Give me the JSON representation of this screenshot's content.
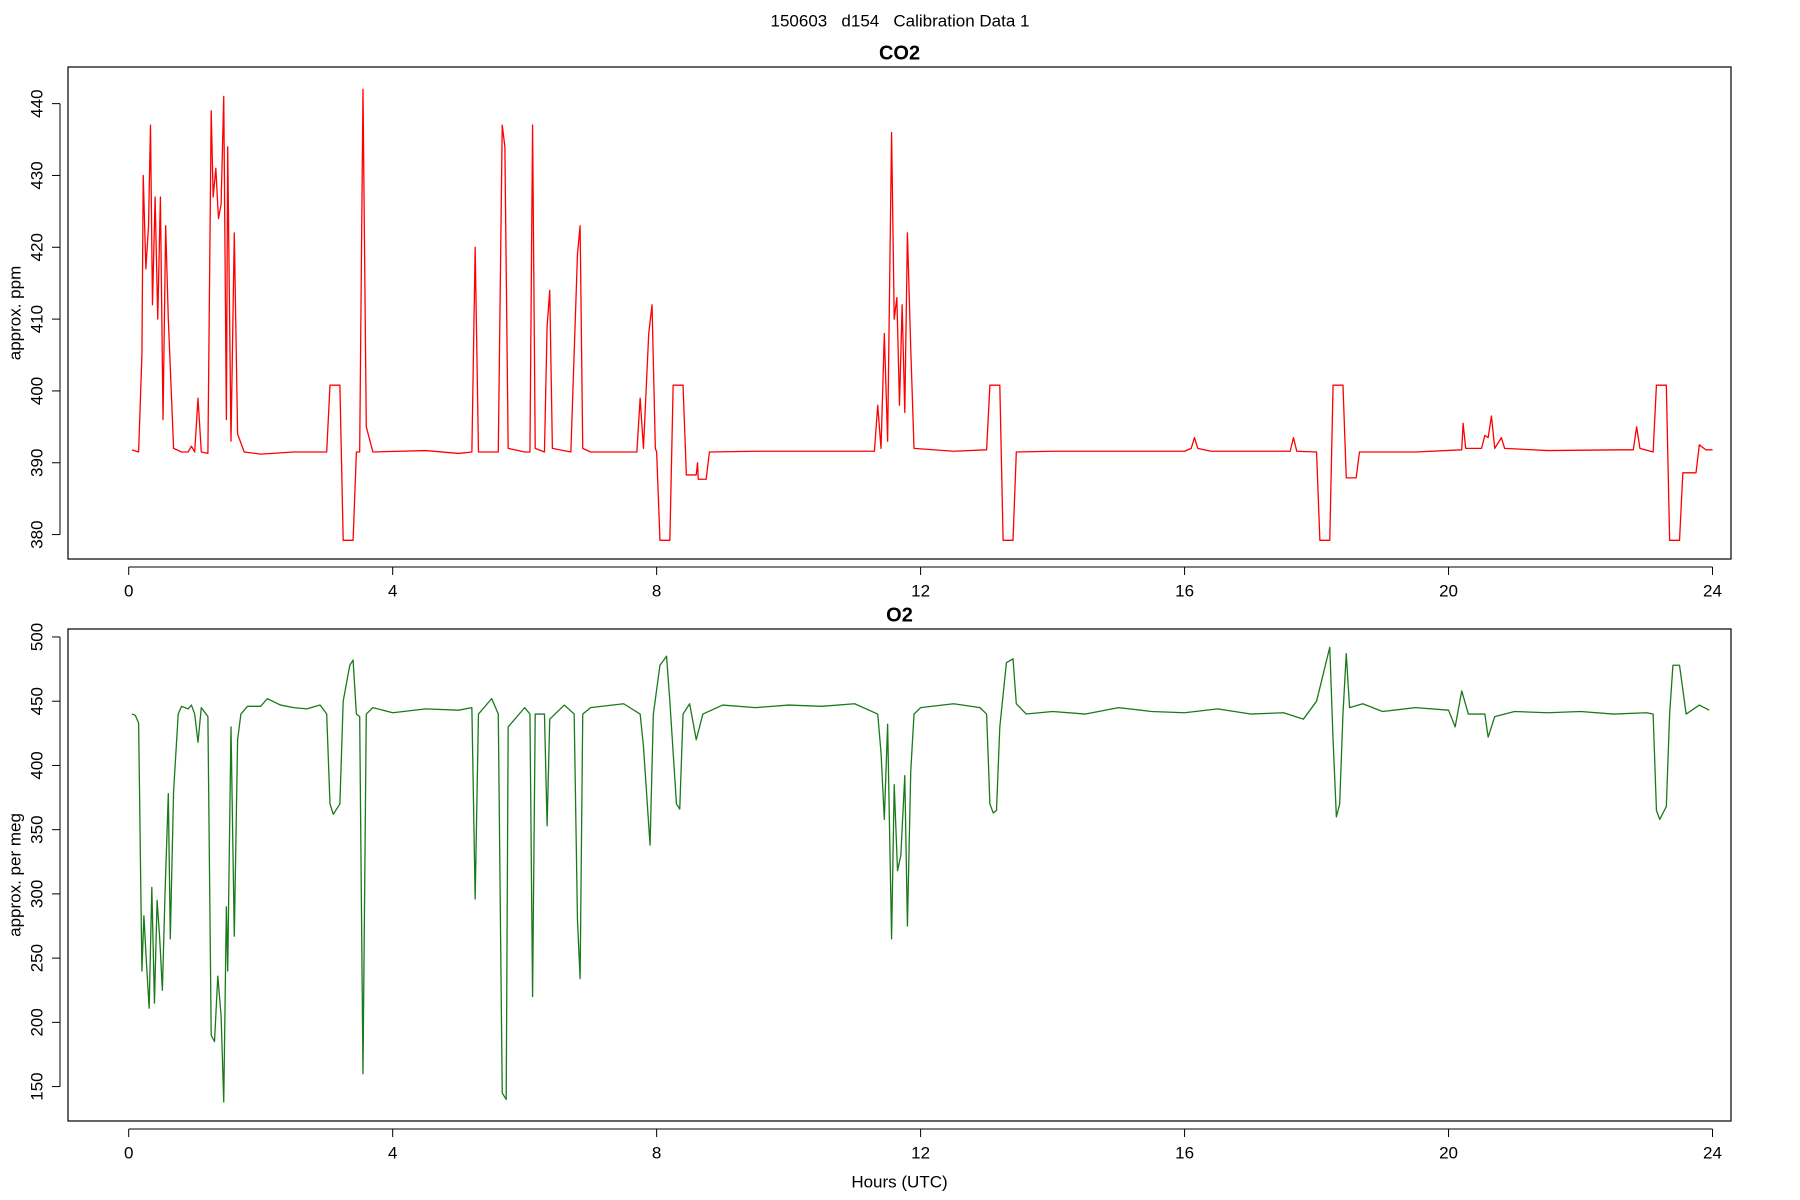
{
  "title": "150603   d154   Calibration Data 1",
  "chart_data": [
    {
      "type": "line",
      "title": "CO2",
      "ylabel": "approx. ppm",
      "xlim": [
        -0.92,
        24.28
      ],
      "xticks": [
        0,
        4,
        8,
        12,
        16,
        20,
        24
      ],
      "ylim": [
        376.6,
        445.1
      ],
      "yticks": [
        380,
        390,
        400,
        410,
        420,
        430,
        440
      ],
      "x": [
        0.05,
        0.15,
        0.2,
        0.22,
        0.26,
        0.3,
        0.33,
        0.36,
        0.4,
        0.44,
        0.48,
        0.52,
        0.56,
        0.6,
        0.68,
        0.8,
        0.9,
        0.95,
        1.0,
        1.05,
        1.1,
        1.2,
        1.25,
        1.28,
        1.32,
        1.36,
        1.4,
        1.44,
        1.48,
        1.5,
        1.55,
        1.6,
        1.65,
        1.75,
        2.0,
        2.5,
        3.0,
        3.05,
        3.2,
        3.25,
        3.4,
        3.45,
        3.5,
        3.55,
        3.6,
        3.7,
        4.5,
        5.0,
        5.2,
        5.25,
        5.3,
        5.6,
        5.66,
        5.7,
        5.75,
        6.0,
        6.08,
        6.12,
        6.16,
        6.3,
        6.34,
        6.38,
        6.42,
        6.7,
        6.8,
        6.84,
        6.88,
        7.0,
        7.5,
        7.7,
        7.75,
        7.8,
        7.88,
        7.93,
        7.98,
        8.0,
        8.05,
        8.2,
        8.25,
        8.4,
        8.45,
        8.6,
        8.62,
        8.63,
        8.75,
        8.8,
        9.5,
        10.5,
        11.3,
        11.35,
        11.4,
        11.45,
        11.5,
        11.56,
        11.6,
        11.64,
        11.68,
        11.72,
        11.76,
        11.8,
        11.85,
        11.9,
        12.5,
        13.0,
        13.05,
        13.2,
        13.25,
        13.4,
        13.45,
        14.0,
        16.0,
        16.1,
        16.15,
        16.2,
        16.4,
        17.6,
        17.65,
        17.7,
        18.0,
        18.05,
        18.2,
        18.25,
        18.4,
        18.45,
        18.6,
        18.65,
        19.5,
        20.2,
        20.22,
        20.26,
        20.5,
        20.55,
        20.6,
        20.65,
        20.7,
        20.8,
        20.85,
        21.5,
        22.6,
        22.8,
        22.85,
        22.9,
        23.1,
        23.15,
        23.3,
        23.35,
        23.5,
        23.55,
        23.75,
        23.8,
        23.9,
        24.0
      ],
      "series": [
        {
          "color": "#ff0000",
          "values": [
            391.8,
            391.5,
            405,
            430,
            417,
            423,
            437,
            412,
            427,
            410,
            427,
            396,
            423,
            410,
            392,
            391.5,
            391.5,
            392.3,
            391.5,
            399,
            391.5,
            391.3,
            439,
            427,
            431,
            424,
            426,
            441,
            396,
            434,
            393,
            422,
            394,
            391.5,
            391.2,
            391.5,
            391.5,
            400.8,
            400.8,
            379.2,
            379.2,
            391.5,
            391.5,
            442,
            395,
            391.5,
            391.7,
            391.3,
            391.5,
            420,
            391.5,
            391.5,
            437,
            434,
            392,
            391.5,
            391.5,
            437,
            392,
            391.5,
            409,
            414,
            392,
            391.5,
            419,
            423,
            392,
            391.5,
            391.5,
            391.5,
            399,
            392,
            408,
            412,
            392,
            391.5,
            379.2,
            379.2,
            400.8,
            400.8,
            388.3,
            388.3,
            390,
            387.7,
            387.7,
            391.5,
            391.6,
            391.6,
            391.6,
            398,
            392,
            408,
            393,
            436,
            410,
            413,
            398,
            412,
            397,
            422,
            406,
            392,
            391.6,
            391.8,
            400.8,
            400.8,
            379.2,
            379.2,
            391.5,
            391.6,
            391.6,
            392,
            393.5,
            392,
            391.6,
            391.6,
            393.5,
            391.6,
            391.5,
            379.2,
            379.2,
            400.8,
            400.8,
            387.9,
            387.9,
            391.5,
            391.5,
            391.8,
            395.5,
            392,
            392,
            393.8,
            393.5,
            396.5,
            392,
            393.5,
            392,
            391.7,
            391.8,
            391.8,
            395,
            392,
            391.5,
            400.8,
            400.8,
            379.2,
            379.2,
            388.6,
            388.6,
            392.5,
            391.8,
            391.8
          ]
        }
      ]
    },
    {
      "type": "line",
      "title": "O2",
      "ylabel": "approx. per meg",
      "xlabel": "Hours (UTC)",
      "xlim": [
        -0.92,
        24.28
      ],
      "xticks": [
        0,
        4,
        8,
        12,
        16,
        20,
        24
      ],
      "ylim": [
        123.2,
        506.2
      ],
      "yticks": [
        150,
        200,
        250,
        300,
        350,
        400,
        450,
        500
      ],
      "x": [
        0.05,
        0.1,
        0.15,
        0.2,
        0.23,
        0.27,
        0.31,
        0.35,
        0.39,
        0.43,
        0.47,
        0.51,
        0.55,
        0.6,
        0.63,
        0.68,
        0.75,
        0.8,
        0.9,
        0.95,
        1.0,
        1.05,
        1.1,
        1.2,
        1.25,
        1.3,
        1.35,
        1.4,
        1.44,
        1.48,
        1.5,
        1.55,
        1.6,
        1.65,
        1.7,
        1.8,
        2.0,
        2.1,
        2.3,
        2.5,
        2.7,
        2.9,
        3.0,
        3.05,
        3.1,
        3.2,
        3.25,
        3.35,
        3.4,
        3.45,
        3.5,
        3.55,
        3.6,
        3.7,
        4.0,
        4.5,
        5.0,
        5.2,
        5.25,
        5.3,
        5.5,
        5.6,
        5.66,
        5.72,
        5.75,
        6.0,
        6.08,
        6.12,
        6.16,
        6.3,
        6.34,
        6.38,
        6.6,
        6.75,
        6.8,
        6.84,
        6.88,
        7.0,
        7.5,
        7.75,
        7.8,
        7.9,
        7.95,
        8.05,
        8.15,
        8.2,
        8.3,
        8.35,
        8.4,
        8.5,
        8.6,
        8.7,
        9.0,
        9.5,
        10.0,
        10.5,
        11.0,
        11.35,
        11.4,
        11.45,
        11.5,
        11.56,
        11.6,
        11.65,
        11.7,
        11.76,
        11.8,
        11.85,
        11.9,
        12.0,
        12.5,
        12.9,
        13.0,
        13.05,
        13.1,
        13.15,
        13.2,
        13.3,
        13.4,
        13.45,
        13.6,
        14.0,
        14.5,
        15.0,
        15.5,
        16.0,
        16.5,
        17.0,
        17.5,
        17.8,
        18.0,
        18.2,
        18.25,
        18.3,
        18.35,
        18.4,
        18.45,
        18.5,
        18.7,
        19.0,
        19.5,
        20.0,
        20.1,
        20.2,
        20.3,
        20.55,
        20.6,
        20.7,
        21.0,
        21.5,
        22.0,
        22.5,
        23.0,
        23.1,
        23.15,
        23.2,
        23.3,
        23.35,
        23.4,
        23.5,
        23.6,
        23.8,
        23.95
      ],
      "series": [
        {
          "color": "#1a7a1a",
          "values": [
            440,
            439,
            433,
            240,
            283,
            245,
            211,
            305,
            215,
            295,
            265,
            225,
            300,
            378,
            265,
            380,
            440,
            446,
            444,
            447,
            440,
            418,
            445,
            438,
            190,
            185,
            236,
            205,
            138,
            290,
            240,
            430,
            267,
            420,
            440,
            446,
            446,
            452,
            447,
            445,
            444,
            447,
            440,
            370,
            362,
            370,
            450,
            478,
            482,
            440,
            438,
            160,
            440,
            445,
            441,
            444,
            443,
            445,
            296,
            440,
            452,
            440,
            145,
            140,
            430,
            445,
            440,
            220,
            440,
            440,
            353,
            436,
            447,
            440,
            280,
            234,
            440,
            445,
            448,
            440,
            415,
            338,
            440,
            478,
            485,
            450,
            370,
            366,
            440,
            448,
            420,
            440,
            447,
            445,
            447,
            446,
            448,
            440,
            410,
            358,
            432,
            265,
            385,
            318,
            330,
            392,
            275,
            395,
            440,
            445,
            448,
            445,
            440,
            370,
            363,
            365,
            430,
            480,
            483,
            448,
            440,
            442,
            440,
            445,
            442,
            441,
            444,
            440,
            441,
            436,
            450,
            492,
            420,
            360,
            370,
            440,
            487,
            445,
            448,
            442,
            445,
            443,
            430,
            458,
            440,
            440,
            422,
            438,
            442,
            441,
            442,
            440,
            441,
            440,
            365,
            358,
            368,
            440,
            478,
            478,
            440,
            447,
            443
          ]
        }
      ]
    }
  ]
}
